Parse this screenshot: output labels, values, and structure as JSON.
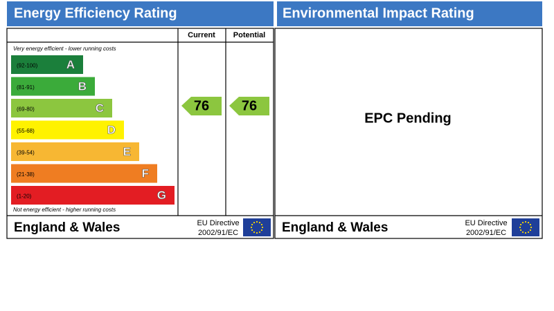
{
  "left": {
    "title": "Energy Efficiency Rating",
    "columns": [
      "Current",
      "Potential"
    ],
    "top_note": "Very energy efficient - lower running costs",
    "bottom_note": "Not energy efficient - higher running costs",
    "bands": [
      {
        "range": "(92-100)",
        "letter": "A"
      },
      {
        "range": "(81-91)",
        "letter": "B"
      },
      {
        "range": "(69-80)",
        "letter": "C"
      },
      {
        "range": "(55-68)",
        "letter": "D"
      },
      {
        "range": "(39-54)",
        "letter": "E"
      },
      {
        "range": "(21-38)",
        "letter": "F"
      },
      {
        "range": "(1-20)",
        "letter": "G"
      }
    ],
    "current": 76,
    "potential": 76,
    "footer": {
      "region": "England & Wales",
      "directive": "EU Directive",
      "code": "2002/91/EC"
    }
  },
  "right": {
    "title": "Environmental Impact Rating",
    "status": "EPC Pending",
    "footer": {
      "region": "England & Wales",
      "directive": "EU Directive",
      "code": "2002/91/EC"
    }
  }
}
